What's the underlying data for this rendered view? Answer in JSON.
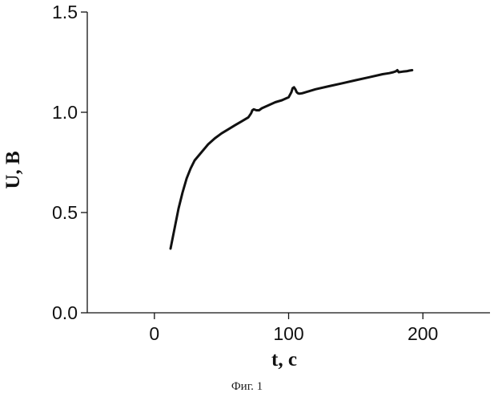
{
  "chart_data": {
    "type": "line",
    "title": "",
    "xlabel": "t, c",
    "ylabel": "U, B",
    "xlim": [
      -50,
      250
    ],
    "ylim": [
      0,
      1.5
    ],
    "x_ticks": [
      0,
      100,
      200
    ],
    "x_tick_labels": [
      "0",
      "100",
      "200"
    ],
    "y_ticks": [
      0.0,
      0.5,
      1.0,
      1.5
    ],
    "y_tick_labels": [
      "0.0",
      "0.5",
      "1.0",
      "1.5"
    ],
    "grid": false,
    "series": [
      {
        "x": [
          12,
          15,
          18,
          21,
          24,
          27,
          30,
          35,
          40,
          45,
          50,
          55,
          60,
          65,
          70,
          72,
          73,
          74,
          76,
          78,
          80,
          85,
          90,
          95,
          100,
          102,
          103,
          104,
          105,
          106,
          107,
          108,
          110,
          115,
          120,
          130,
          140,
          150,
          160,
          170,
          175,
          178,
          180,
          181,
          182,
          185,
          188,
          190,
          192
        ],
        "y": [
          0.32,
          0.42,
          0.52,
          0.6,
          0.67,
          0.72,
          0.76,
          0.8,
          0.84,
          0.87,
          0.895,
          0.915,
          0.935,
          0.955,
          0.975,
          0.995,
          1.01,
          1.015,
          1.01,
          1.01,
          1.02,
          1.035,
          1.05,
          1.06,
          1.075,
          1.1,
          1.12,
          1.125,
          1.115,
          1.1,
          1.095,
          1.093,
          1.095,
          1.105,
          1.115,
          1.13,
          1.145,
          1.16,
          1.175,
          1.19,
          1.195,
          1.2,
          1.205,
          1.21,
          1.2,
          1.203,
          1.205,
          1.208,
          1.21
        ],
        "color": "#111111"
      }
    ]
  },
  "caption": "Фиг. 1"
}
